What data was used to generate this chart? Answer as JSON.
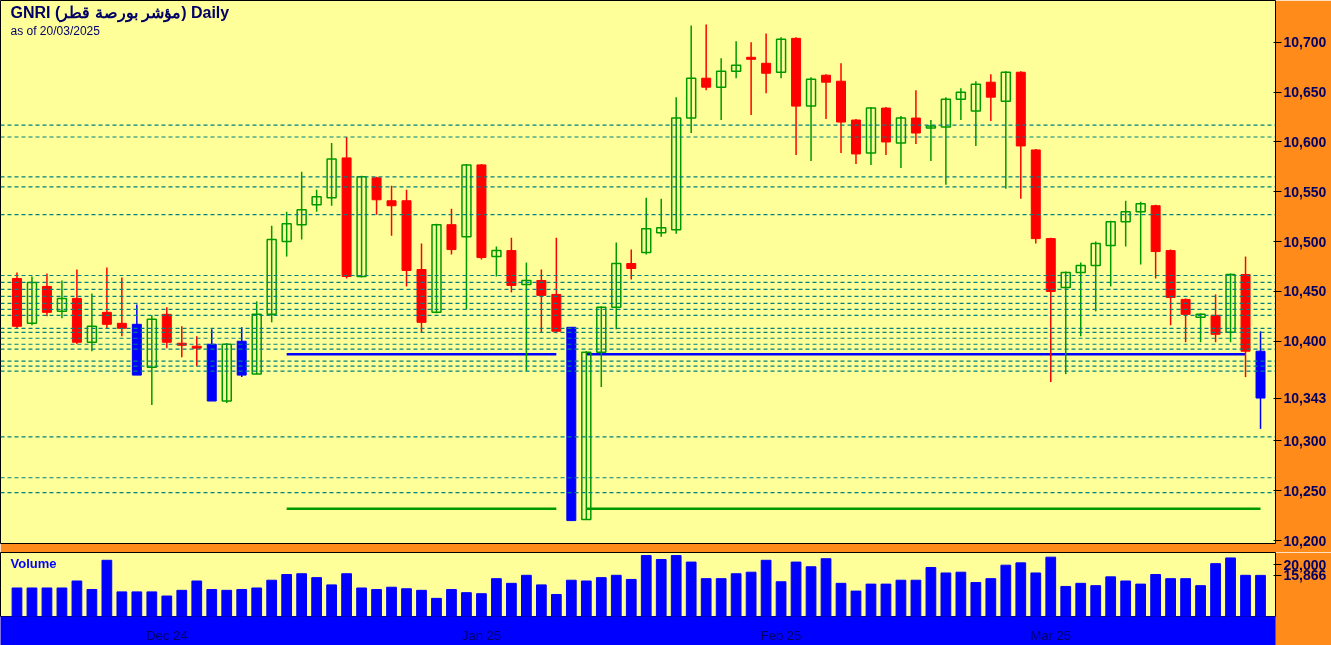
{
  "chart_data": [
    {
      "type": "candlestick",
      "title": "GNRI (مؤشر بورصة قطر) Daily",
      "subtitle": "as of 20/03/2025",
      "categories": [
        null,
        null,
        null,
        null,
        null,
        null,
        null,
        null,
        null,
        null,
        null,
        null,
        null,
        null,
        null,
        null,
        null,
        null,
        null,
        null,
        null,
        null,
        null,
        null,
        null,
        null,
        null,
        null,
        null,
        null,
        null,
        null,
        null,
        null,
        null,
        null,
        null,
        null,
        null,
        null,
        null,
        null,
        null,
        null,
        null,
        null,
        null,
        null,
        null,
        null,
        null,
        null,
        null,
        null,
        null,
        null,
        null,
        null,
        null,
        null,
        null,
        null,
        null,
        null,
        null,
        null,
        null,
        null,
        null,
        null,
        null,
        null,
        null,
        null,
        null,
        null,
        null,
        null,
        null,
        null,
        null,
        null,
        null,
        null
      ],
      "ohlc": [
        [
          10463,
          10469,
          10413,
          10415
        ],
        [
          10418,
          10465,
          10416,
          10459
        ],
        [
          10455,
          10468,
          10425,
          10429
        ],
        [
          10430,
          10461,
          10423,
          10443
        ],
        [
          10443,
          10472,
          10397,
          10399
        ],
        [
          10399,
          10448,
          10390,
          10415
        ],
        [
          10429,
          10474,
          10413,
          10417
        ],
        [
          10418,
          10464,
          10405,
          10413
        ],
        [
          10417,
          10437,
          10366,
          10366
        ],
        [
          10374,
          10426,
          10336,
          10422
        ],
        [
          10427,
          10434,
          10393,
          10399
        ],
        [
          10398,
          10415,
          10384,
          10396
        ],
        [
          10395,
          10405,
          10375,
          10393
        ],
        [
          10397,
          10412,
          10340,
          10340
        ],
        [
          10340,
          10398,
          10338,
          10397
        ],
        [
          10400,
          10414,
          10364,
          10366
        ],
        [
          10367,
          10440,
          10367,
          10427
        ],
        [
          10427,
          10516,
          10419,
          10502
        ],
        [
          10500,
          10530,
          10485,
          10518
        ],
        [
          10517,
          10570,
          10502,
          10532
        ],
        [
          10537,
          10552,
          10530,
          10545
        ],
        [
          10544,
          10599,
          10536,
          10583
        ],
        [
          10584,
          10605,
          10463,
          10465
        ],
        [
          10465,
          10566,
          10464,
          10565
        ],
        [
          10564,
          10565,
          10527,
          10542
        ],
        [
          10541,
          10556,
          10506,
          10536
        ],
        [
          10541,
          10552,
          10455,
          10471
        ],
        [
          10472,
          10498,
          10409,
          10419
        ],
        [
          10429,
          10518,
          10428,
          10517
        ],
        [
          10517,
          10533,
          10487,
          10492
        ],
        [
          10505,
          10578,
          10432,
          10577
        ],
        [
          10577,
          10578,
          10482,
          10484
        ],
        [
          10485,
          10495,
          10465,
          10491
        ],
        [
          10491,
          10504,
          10449,
          10456
        ],
        [
          10457,
          10479,
          10370,
          10461
        ],
        [
          10461,
          10472,
          10409,
          10446
        ],
        [
          10447,
          10504,
          10408,
          10410
        ],
        [
          10414,
          10414,
          10220,
          10220
        ],
        [
          10221,
          10390,
          10221,
          10389
        ],
        [
          10389,
          10435,
          10354,
          10434
        ],
        [
          10434,
          10499,
          10412,
          10478
        ],
        [
          10478,
          10492,
          10462,
          10473
        ],
        [
          10489,
          10544,
          10487,
          10513
        ],
        [
          10509,
          10543,
          10505,
          10514
        ],
        [
          10512,
          10645,
          10508,
          10624
        ],
        [
          10624,
          10717,
          10609,
          10664
        ],
        [
          10664,
          10718,
          10652,
          10655
        ],
        [
          10655,
          10684,
          10622,
          10671
        ],
        [
          10671,
          10701,
          10664,
          10677
        ],
        [
          10685,
          10700,
          10627,
          10683
        ],
        [
          10679,
          10709,
          10649,
          10669
        ],
        [
          10670,
          10705,
          10664,
          10703
        ],
        [
          10704,
          10705,
          10587,
          10636
        ],
        [
          10636,
          10665,
          10581,
          10663
        ],
        [
          10667,
          10668,
          10623,
          10660
        ],
        [
          10661,
          10679,
          10589,
          10620
        ],
        [
          10622,
          10623,
          10578,
          10588
        ],
        [
          10589,
          10635,
          10577,
          10634
        ],
        [
          10634,
          10635,
          10587,
          10600
        ],
        [
          10599,
          10626,
          10574,
          10624
        ],
        [
          10624,
          10652,
          10598,
          10609
        ],
        [
          10614,
          10622,
          10581,
          10616
        ],
        [
          10615,
          10645,
          10557,
          10643
        ],
        [
          10643,
          10654,
          10622,
          10650
        ],
        [
          10631,
          10661,
          10596,
          10658
        ],
        [
          10660,
          10668,
          10621,
          10645
        ],
        [
          10641,
          10671,
          10553,
          10670
        ],
        [
          10670,
          10671,
          10543,
          10596
        ],
        [
          10592,
          10593,
          10498,
          10503
        ],
        [
          10503,
          10504,
          10359,
          10450
        ],
        [
          10454,
          10470,
          10367,
          10469
        ],
        [
          10469,
          10479,
          10405,
          10476
        ],
        [
          10476,
          10500,
          10430,
          10498
        ],
        [
          10496,
          10521,
          10455,
          10520
        ],
        [
          10520,
          10541,
          10495,
          10530
        ],
        [
          10530,
          10540,
          10477,
          10538
        ],
        [
          10536,
          10537,
          10463,
          10490
        ],
        [
          10491,
          10492,
          10416,
          10444
        ],
        [
          10442,
          10443,
          10399,
          10427
        ],
        [
          10424,
          10428,
          10399,
          10427
        ],
        [
          10426,
          10447,
          10399,
          10407
        ],
        [
          10409,
          10468,
          10399,
          10467
        ],
        [
          10467,
          10485,
          10364,
          10390
        ],
        [
          10390,
          10410,
          10312,
          10343
        ]
      ],
      "colors": [
        "#ff0000",
        "#009900",
        "#ff0000",
        "#009900",
        "#ff0000",
        "#009900",
        "#ff0000",
        "#ff0000",
        "#0000ff",
        "#009900",
        "#ff0000",
        "#ff0000",
        "#ff0000",
        "#0000ff",
        "#009900",
        "#0000ff",
        "#009900",
        "#009900",
        "#009900",
        "#009900",
        "#009900",
        "#009900",
        "#ff0000",
        "#009900",
        "#ff0000",
        "#ff0000",
        "#ff0000",
        "#ff0000",
        "#009900",
        "#ff0000",
        "#009900",
        "#ff0000",
        "#009900",
        "#ff0000",
        "#009900",
        "#ff0000",
        "#ff0000",
        "#0000ff",
        "#009900",
        "#009900",
        "#009900",
        "#ff0000",
        "#009900",
        "#009900",
        "#009900",
        "#009900",
        "#ff0000",
        "#009900",
        "#009900",
        "#ff0000",
        "#ff0000",
        "#009900",
        "#ff0000",
        "#009900",
        "#ff0000",
        "#ff0000",
        "#ff0000",
        "#009900",
        "#ff0000",
        "#009900",
        "#ff0000",
        "#009900",
        "#009900",
        "#009900",
        "#009900",
        "#ff0000",
        "#009900",
        "#ff0000",
        "#ff0000",
        "#ff0000",
        "#009900",
        "#009900",
        "#009900",
        "#009900",
        "#009900",
        "#009900",
        "#ff0000",
        "#ff0000",
        "#ff0000",
        "#009900",
        "#ff0000",
        "#009900",
        "#ff0000",
        "#0000ff"
      ],
      "series": [
        {
          "type": "line",
          "color": "#0000ff",
          "values": [
            null,
            null,
            null,
            null,
            null,
            null,
            null,
            null,
            null,
            null,
            null,
            null,
            null,
            null,
            null,
            null,
            null,
            null,
            10387,
            10387,
            10387,
            10387,
            10387,
            10387,
            10387,
            10387,
            10387,
            10387,
            10387,
            10387,
            10387,
            10387,
            10387,
            10387,
            10387,
            10387,
            10387,
            null,
            10387,
            10387,
            10387,
            10387,
            10387,
            10387,
            10387,
            10387,
            10387,
            10387,
            10387,
            10387,
            10387,
            10387,
            10387,
            10387,
            10387,
            10387,
            10387,
            10387,
            10387,
            10387,
            10387,
            10387,
            10387,
            10387,
            10387,
            10387,
            10387,
            10387,
            10387,
            10387,
            10387,
            10387,
            10387,
            10387,
            10387,
            10387,
            10387,
            10387,
            10387,
            10387,
            10387,
            10387,
            10387,
            null
          ]
        },
        {
          "type": "line",
          "color": "#009900",
          "values": [
            null,
            null,
            null,
            null,
            null,
            null,
            null,
            null,
            null,
            null,
            null,
            null,
            null,
            null,
            null,
            null,
            null,
            null,
            10232,
            10232,
            10232,
            10232,
            10232,
            10232,
            10232,
            10232,
            10232,
            10232,
            10232,
            10232,
            10232,
            10232,
            10232,
            10232,
            10232,
            10232,
            10232,
            null,
            10232,
            10232,
            10232,
            10232,
            10232,
            10232,
            10232,
            10232,
            10232,
            10232,
            10232,
            10232,
            10232,
            10232,
            10232,
            10232,
            10232,
            10232,
            10232,
            10232,
            10232,
            10232,
            10232,
            10232,
            10232,
            10232,
            10232,
            10232,
            10232,
            10232,
            10232,
            10232,
            10232,
            10232,
            10232,
            10232,
            10232,
            10232,
            10232,
            10232,
            10232,
            10232,
            10232,
            10232,
            10232,
            10232
          ]
        }
      ],
      "ref_lines": [
        {
          "axis": "y",
          "value": 10617,
          "color": "#008080",
          "line_style": "dashed"
        },
        {
          "axis": "y",
          "value": 10605,
          "color": "#008080",
          "line_style": "dashed"
        },
        {
          "axis": "y",
          "value": 10565,
          "color": "#008080",
          "line_style": "dashed"
        },
        {
          "axis": "y",
          "value": 10555,
          "color": "#008080",
          "line_style": "dashed"
        },
        {
          "axis": "y",
          "value": 10527,
          "color": "#008080",
          "line_style": "dashed"
        },
        {
          "axis": "y",
          "value": 10466,
          "color": "#008080",
          "line_style": "dashed"
        },
        {
          "axis": "y",
          "value": 10459,
          "color": "#008080",
          "line_style": "dashed"
        },
        {
          "axis": "y",
          "value": 10452,
          "color": "#008080",
          "line_style": "dashed"
        },
        {
          "axis": "y",
          "value": 10445,
          "color": "#008080",
          "line_style": "dashed"
        },
        {
          "axis": "y",
          "value": 10438,
          "color": "#008080",
          "line_style": "dashed"
        },
        {
          "axis": "y",
          "value": 10432,
          "color": "#008080",
          "line_style": "dashed"
        },
        {
          "axis": "y",
          "value": 10426,
          "color": "#008080",
          "line_style": "dashed"
        },
        {
          "axis": "y",
          "value": 10413,
          "color": "#008080",
          "line_style": "dashed"
        },
        {
          "axis": "y",
          "value": 10409,
          "color": "#008080",
          "line_style": "dashed"
        },
        {
          "axis": "y",
          "value": 10403,
          "color": "#008080",
          "line_style": "dashed"
        },
        {
          "axis": "y",
          "value": 10397,
          "color": "#008080",
          "line_style": "dashed"
        },
        {
          "axis": "y",
          "value": 10392,
          "color": "#008080",
          "line_style": "dashed"
        },
        {
          "axis": "y",
          "value": 10380,
          "color": "#008080",
          "line_style": "dashed"
        },
        {
          "axis": "y",
          "value": 10375,
          "color": "#008080",
          "line_style": "dashed"
        },
        {
          "axis": "y",
          "value": 10370,
          "color": "#008080",
          "line_style": "dashed"
        },
        {
          "axis": "y",
          "value": 10304,
          "color": "#008080",
          "line_style": "dashed"
        },
        {
          "axis": "y",
          "value": 10263,
          "color": "#008080",
          "line_style": "dashed"
        },
        {
          "axis": "y",
          "value": 10248,
          "color": "#008080",
          "line_style": "dashed"
        }
      ],
      "ylim": [
        10197,
        10742
      ],
      "yticks": [
        {
          "value": 10200,
          "label": "10,200"
        },
        {
          "value": 10250,
          "label": "10,250"
        },
        {
          "value": 10300,
          "label": "10,300"
        },
        {
          "value": 10343,
          "label": "10,343"
        },
        {
          "value": 10400,
          "label": "10,400"
        },
        {
          "value": 10450,
          "label": "10,450"
        },
        {
          "value": 10500,
          "label": "10,500"
        },
        {
          "value": 10550,
          "label": "10,550"
        },
        {
          "value": 10600,
          "label": "10,600"
        },
        {
          "value": 10650,
          "label": "10,650"
        },
        {
          "value": 10700,
          "label": "10,700"
        }
      ],
      "tick_labels": "y",
      "grid": false
    },
    {
      "type": "bar",
      "title": "Volume",
      "categories": [
        null,
        null,
        null,
        null,
        null,
        null,
        null,
        null,
        null,
        null,
        "Dec 24",
        null,
        null,
        null,
        null,
        null,
        null,
        null,
        null,
        null,
        null,
        null,
        null,
        null,
        null,
        null,
        null,
        null,
        null,
        null,
        null,
        "Jan 25",
        null,
        null,
        null,
        null,
        null,
        null,
        null,
        null,
        null,
        null,
        null,
        null,
        null,
        null,
        null,
        null,
        null,
        null,
        null,
        "Feb 25",
        null,
        null,
        null,
        null,
        null,
        null,
        null,
        null,
        null,
        null,
        null,
        null,
        null,
        null,
        null,
        null,
        null,
        "Mar 25",
        null,
        null,
        null,
        null,
        null,
        null,
        null,
        null,
        null,
        null,
        null,
        null,
        null,
        null
      ],
      "values": [
        11000,
        11000,
        11000,
        11000,
        13700,
        10400,
        21700,
        9500,
        9500,
        9500,
        7900,
        10100,
        13700,
        10400,
        10100,
        10400,
        11000,
        14000,
        16200,
        16500,
        15000,
        12200,
        16500,
        11000,
        10400,
        11300,
        10700,
        10100,
        7000,
        10400,
        9200,
        8800,
        14600,
        12800,
        15900,
        12200,
        8500,
        14000,
        13700,
        15000,
        15900,
        14300,
        23500,
        22000,
        23500,
        21000,
        14600,
        14600,
        16500,
        17100,
        21700,
        13400,
        21000,
        19200,
        22300,
        12800,
        9800,
        12500,
        12500,
        14000,
        14000,
        18900,
        16800,
        17100,
        13100,
        14600,
        19800,
        20700,
        16800,
        22900,
        11600,
        12800,
        11900,
        15300,
        13700,
        12500,
        16200,
        14600,
        14600,
        11900,
        20400,
        22600,
        15900,
        15866
      ],
      "value_labels": [
        null,
        null,
        null,
        null,
        null,
        null,
        null,
        null,
        null,
        null,
        null,
        null,
        null,
        null,
        null,
        null,
        null,
        null,
        null,
        null,
        null,
        null,
        null,
        null,
        null,
        null,
        null,
        null,
        null,
        null,
        null,
        null,
        null,
        null,
        null,
        null,
        null,
        null,
        null,
        null,
        null,
        null,
        null,
        null,
        null,
        null,
        null,
        null,
        null,
        null,
        null,
        null,
        null,
        null,
        null,
        null,
        null,
        null,
        null,
        null,
        null,
        null,
        null,
        null,
        null,
        null,
        null,
        null,
        null,
        null,
        null,
        null,
        null,
        null,
        null,
        null,
        null,
        null,
        null,
        null,
        null,
        null,
        null,
        "15,866"
      ],
      "color": "#0000ff",
      "ylim": [
        0,
        24700
      ],
      "yticks": [
        {
          "value": 20000,
          "label": "20,000"
        }
      ],
      "grid": false
    }
  ]
}
